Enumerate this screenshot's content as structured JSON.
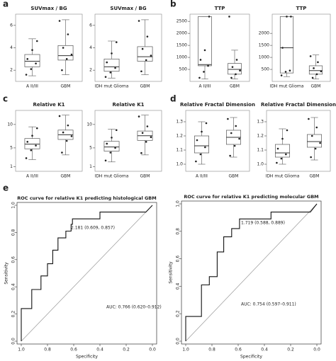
{
  "chart_data": [
    {
      "type": "box",
      "panel_label": "a",
      "title": "SUVmax / BG",
      "categories": [
        "A II/III",
        "GBM"
      ],
      "ylim": [
        1,
        7
      ],
      "yticks": [
        2,
        4,
        6
      ],
      "boxes": [
        {
          "min": 1.5,
          "q1": 2.3,
          "median": 2.8,
          "q3": 3.4,
          "max": 4.8,
          "points": [
            1.6,
            2.1,
            2.6,
            3.0,
            3.8,
            4.6
          ]
        },
        {
          "min": 1.6,
          "q1": 2.9,
          "median": 3.3,
          "q3": 4.2,
          "max": 6.5,
          "points": [
            2.0,
            3.0,
            3.4,
            4.0,
            5.2,
            6.4
          ]
        }
      ]
    },
    {
      "type": "box",
      "title": "SUVmax / BG",
      "categories": [
        "IDH mut Glioma",
        "GBM"
      ],
      "ylim": [
        1,
        7
      ],
      "yticks": [
        2,
        4,
        6
      ],
      "boxes": [
        {
          "min": 1.3,
          "q1": 1.9,
          "median": 2.3,
          "q3": 3.0,
          "max": 4.6,
          "points": [
            1.4,
            1.8,
            2.2,
            2.7,
            3.5,
            4.5
          ]
        },
        {
          "min": 1.6,
          "q1": 2.8,
          "median": 3.2,
          "q3": 4.1,
          "max": 6.5,
          "points": [
            1.9,
            2.9,
            3.3,
            3.9,
            5.0,
            6.4
          ]
        }
      ]
    },
    {
      "type": "box",
      "panel_label": "b",
      "title": "TTP",
      "categories": [
        "A II/III",
        "GBM"
      ],
      "ylim": [
        0,
        2800
      ],
      "yticks": [
        500,
        1000,
        1500,
        2000,
        2500
      ],
      "boxes": [
        {
          "min": 100,
          "q1": 650,
          "median": 700,
          "q3": 2700,
          "max": 2700,
          "points": [
            150,
            400,
            650,
            900,
            1300,
            2700
          ]
        },
        {
          "min": 100,
          "q1": 300,
          "median": 500,
          "q3": 750,
          "max": 1300,
          "points": [
            150,
            300,
            450,
            600,
            900,
            2700
          ]
        }
      ]
    },
    {
      "type": "box",
      "title": "TTP",
      "categories": [
        "IDH mut Glioma",
        "GBM"
      ],
      "ylim": [
        0,
        2800
      ],
      "yticks": [
        500,
        1000,
        1500,
        2000
      ],
      "boxes": [
        {
          "min": 200,
          "q1": 350,
          "median": 1400,
          "q3": 2700,
          "max": 2700,
          "points": [
            250,
            400,
            450,
            1400,
            2700,
            2700
          ]
        },
        {
          "min": 100,
          "q1": 300,
          "median": 450,
          "q3": 650,
          "max": 1100,
          "points": [
            150,
            300,
            420,
            550,
            800,
            1050
          ]
        }
      ]
    },
    {
      "type": "box",
      "panel_label": "c",
      "title": "Relative K1",
      "categories": [
        "A II/III",
        "GBM"
      ],
      "ylim": [
        0,
        13
      ],
      "yticks": [
        1,
        5,
        10
      ],
      "boxes": [
        {
          "min": 2.5,
          "q1": 4.8,
          "median": 5.8,
          "q3": 7.0,
          "max": 9.5,
          "points": [
            2.8,
            4.5,
            5.5,
            6.3,
            7.6,
            9.2
          ]
        },
        {
          "min": 3.5,
          "q1": 6.8,
          "median": 7.8,
          "q3": 8.8,
          "max": 12,
          "points": [
            4.0,
            6.5,
            7.5,
            8.3,
            9.8,
            11.8
          ]
        }
      ]
    },
    {
      "type": "box",
      "title": "Relative K1",
      "categories": [
        "IDH mut Glioma",
        "GBM"
      ],
      "ylim": [
        0,
        13
      ],
      "yticks": [
        1,
        5,
        10
      ],
      "boxes": [
        {
          "min": 2,
          "q1": 4.3,
          "median": 5.2,
          "q3": 6.4,
          "max": 9,
          "points": [
            2.3,
            4.0,
            5.0,
            5.9,
            7.2,
            8.8
          ]
        },
        {
          "min": 3.5,
          "q1": 6.6,
          "median": 7.6,
          "q3": 8.6,
          "max": 12,
          "points": [
            3.9,
            6.3,
            7.3,
            8.2,
            9.6,
            11.7
          ]
        }
      ]
    },
    {
      "type": "box",
      "panel_label": "d",
      "title": "Relative Fractal Dimension",
      "categories": [
        "A II/III",
        "GBM"
      ],
      "ylim": [
        0.95,
        1.38
      ],
      "yticks": [
        {
          "value": 1,
          "label": "1.0"
        },
        1.1,
        1.2,
        1.3
      ],
      "boxes": [
        {
          "min": 1.0,
          "q1": 1.08,
          "median": 1.13,
          "q3": 1.2,
          "max": 1.3,
          "points": [
            1.02,
            1.07,
            1.12,
            1.17,
            1.23,
            1.29
          ]
        },
        {
          "min": 1.05,
          "q1": 1.14,
          "median": 1.19,
          "q3": 1.24,
          "max": 1.33,
          "points": [
            1.06,
            1.13,
            1.18,
            1.22,
            1.27,
            1.32
          ]
        }
      ]
    },
    {
      "type": "box",
      "title": "Relative Fractal Dimension",
      "categories": [
        "IDH mut Glioma",
        "GBM"
      ],
      "ylim": [
        0.95,
        1.38
      ],
      "yticks": [
        {
          "value": 1,
          "label": "1.0"
        },
        1.1,
        1.2,
        1.3
      ],
      "boxes": [
        {
          "min": 1.0,
          "q1": 1.05,
          "median": 1.08,
          "q3": 1.14,
          "max": 1.25,
          "points": [
            1.01,
            1.04,
            1.07,
            1.11,
            1.18,
            1.24
          ]
        },
        {
          "min": 1.03,
          "q1": 1.12,
          "median": 1.16,
          "q3": 1.21,
          "max": 1.33,
          "points": [
            1.05,
            1.11,
            1.15,
            1.2,
            1.26,
            1.32
          ]
        }
      ]
    },
    {
      "type": "line",
      "panel_label": "e",
      "title": "ROC curve for relative K1 predicting histological GBM",
      "x_label": "Specificity",
      "y_label": "Sensitivity",
      "xlim": [
        1,
        0
      ],
      "ylim": [
        0,
        1
      ],
      "xticks": [
        {
          "value": 1,
          "label": "1.0"
        },
        0.8,
        0.6,
        0.4,
        0.2,
        {
          "value": 0,
          "label": "0.0"
        }
      ],
      "yticks": [
        {
          "value": 0,
          "label": "0.0"
        },
        0.2,
        0.4,
        0.6,
        0.8,
        {
          "value": 1,
          "label": "1.0"
        }
      ],
      "annotations": [
        "2.181 (0.609, 0.857)",
        "AUC: 0.766 (0.620–0.912)"
      ],
      "x": [
        1,
        1,
        0.92,
        0.92,
        0.85,
        0.85,
        0.8,
        0.8,
        0.76,
        0.76,
        0.72,
        0.72,
        0.66,
        0.66,
        0.62,
        0.62,
        0.61,
        0.61,
        0.4,
        0.4,
        0.05,
        0
      ],
      "values": [
        0,
        0.24,
        0.24,
        0.38,
        0.38,
        0.48,
        0.48,
        0.57,
        0.57,
        0.67,
        0.67,
        0.76,
        0.76,
        0.81,
        0.81,
        0.86,
        0.86,
        0.9,
        0.9,
        0.95,
        0.95,
        1
      ]
    },
    {
      "type": "line",
      "title": "ROC curve for relative K1 predicting molecular GBM",
      "x_label": "Specificity",
      "y_label": "Sensitivity",
      "xlim": [
        1,
        0
      ],
      "ylim": [
        0,
        1
      ],
      "xticks": [
        {
          "value": 1,
          "label": "1.0"
        },
        0.8,
        0.6,
        0.4,
        0.2,
        {
          "value": 0,
          "label": "0.0"
        }
      ],
      "yticks": [
        {
          "value": 0,
          "label": "0.0"
        },
        0.2,
        0.4,
        0.6,
        0.8,
        {
          "value": 1,
          "label": "1.0"
        }
      ],
      "annotations": [
        "1.719 (0.588, 0.889)",
        "AUC: 0.754 (0.597–0.911)"
      ],
      "x": [
        1,
        1,
        0.88,
        0.88,
        0.82,
        0.82,
        0.76,
        0.76,
        0.71,
        0.71,
        0.65,
        0.65,
        0.59,
        0.59,
        0.35,
        0.35,
        0.05,
        0
      ],
      "values": [
        0,
        0.18,
        0.18,
        0.41,
        0.41,
        0.47,
        0.47,
        0.65,
        0.65,
        0.76,
        0.76,
        0.82,
        0.82,
        0.89,
        0.89,
        0.94,
        0.94,
        1
      ]
    }
  ]
}
